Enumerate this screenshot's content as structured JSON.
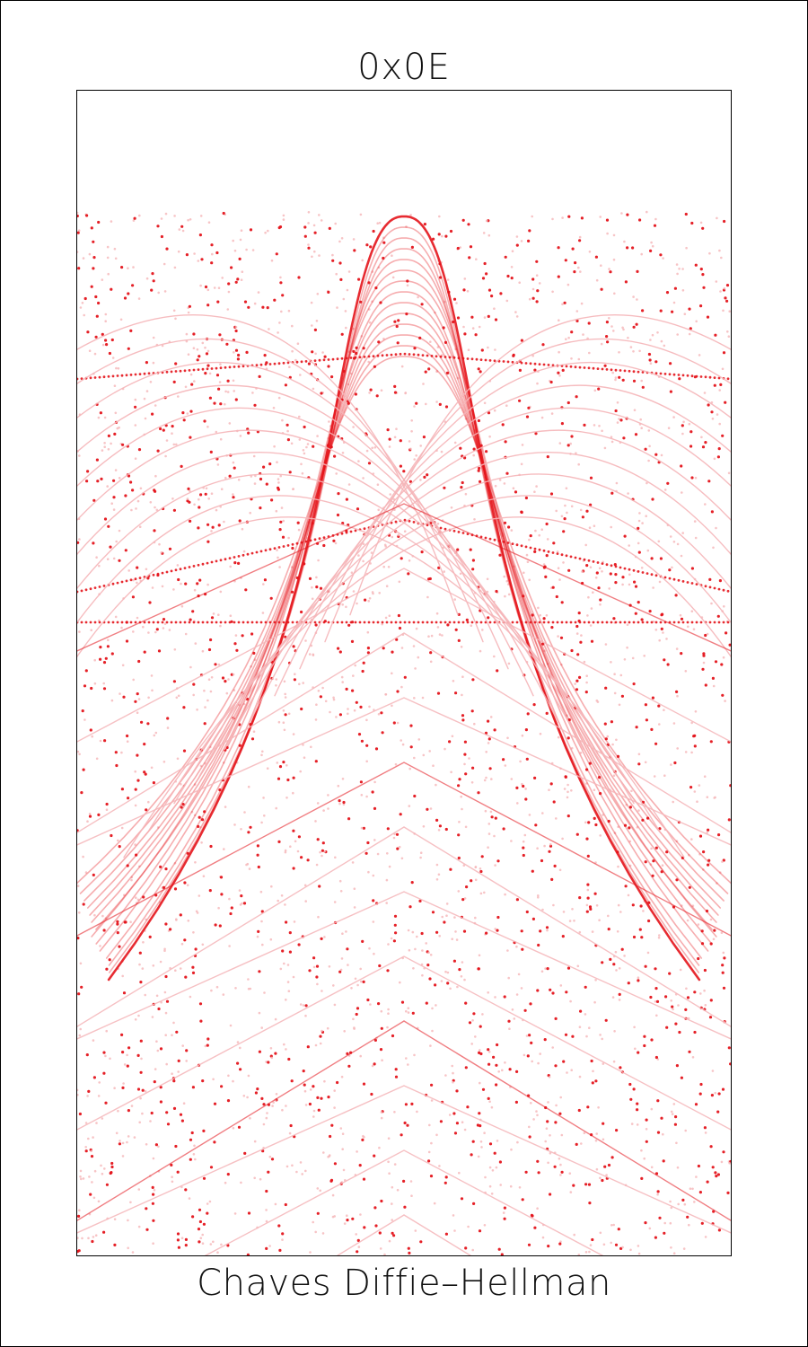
{
  "card": {
    "title": "0x0E",
    "caption": "Chaves Diffie–Hellman"
  },
  "art": {
    "subject": "modular-exponentiation-point-field",
    "accent_color": "#e4141b",
    "faint_color": "#f5b5b8"
  }
}
